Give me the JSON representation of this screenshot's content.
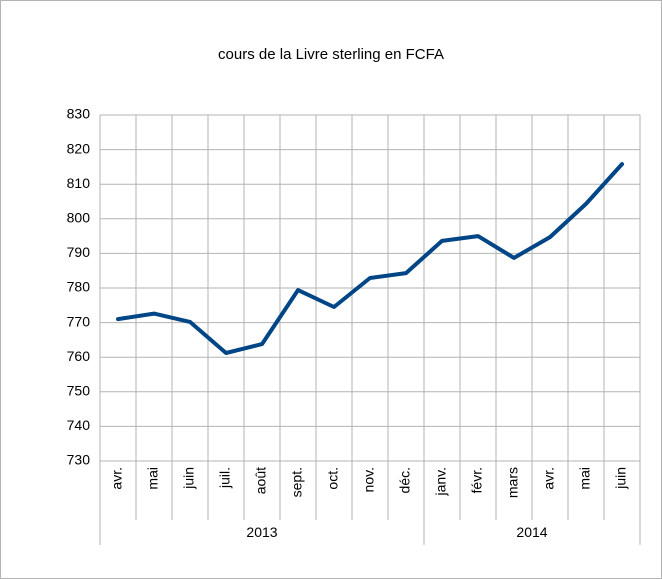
{
  "chart_data": {
    "type": "line",
    "title": "cours de la Livre sterling en FCFA",
    "groups": [
      {
        "label": "2013",
        "categories": [
          "avr.",
          "mai",
          "juin",
          "juil.",
          "août",
          "sept.",
          "oct.",
          "nov.",
          "déc."
        ]
      },
      {
        "label": "2014",
        "categories": [
          "janv.",
          "févr.",
          "mars",
          "avr.",
          "mai",
          "juin"
        ]
      }
    ],
    "series": [
      {
        "name": "cours",
        "color": "#004586",
        "values": [
          771.0,
          772.6,
          770.2,
          761.2,
          763.8,
          779.4,
          774.5,
          782.9,
          784.3,
          793.6,
          795.0,
          788.7,
          794.7,
          804.3,
          815.8
        ]
      }
    ],
    "ylim": [
      730,
      830
    ],
    "yticks": [
      730,
      740,
      750,
      760,
      770,
      780,
      790,
      800,
      810,
      820,
      830
    ],
    "grid": true
  }
}
